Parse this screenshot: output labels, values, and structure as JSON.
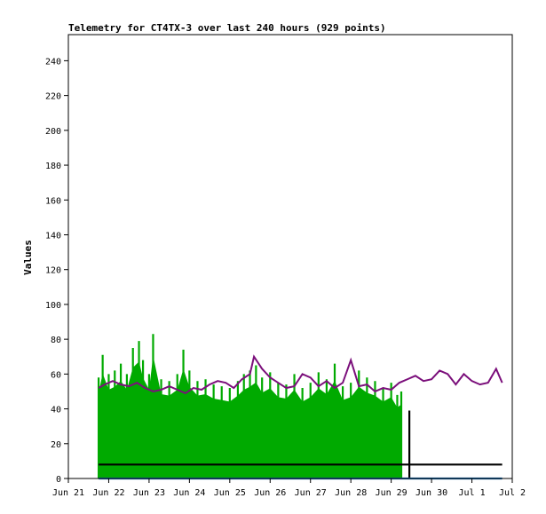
{
  "chart_data": {
    "type": "line",
    "title": "Telemetry for CT4TX-3 over last 240 hours (929 points)",
    "xlabel": "",
    "ylabel": "Values",
    "ylim": [
      0,
      255
    ],
    "yticks": [
      0,
      20,
      40,
      60,
      80,
      100,
      120,
      140,
      160,
      180,
      200,
      220,
      240
    ],
    "xlim_days": [
      21.0,
      32.0
    ],
    "xticks": [
      {
        "day": 21,
        "label": "Jun 21"
      },
      {
        "day": 22,
        "label": "Jun 22"
      },
      {
        "day": 23,
        "label": "Jun 23"
      },
      {
        "day": 24,
        "label": "Jun 24"
      },
      {
        "day": 25,
        "label": "Jun 25"
      },
      {
        "day": 26,
        "label": "Jun 26"
      },
      {
        "day": 27,
        "label": "Jun 27"
      },
      {
        "day": 28,
        "label": "Jun 28"
      },
      {
        "day": 29,
        "label": "Jun 29"
      },
      {
        "day": 30,
        "label": "Jun 30"
      },
      {
        "day": 31,
        "label": "Jul 1"
      },
      {
        "day": 32,
        "label": "Jul 2"
      }
    ],
    "grid": false,
    "legend": "none",
    "series": [
      {
        "color": "#00aa00",
        "style": "dense-bars",
        "x_days": [
          21.75,
          21.85,
          22.0,
          22.15,
          22.3,
          22.45,
          22.6,
          22.75,
          22.85,
          23.0,
          23.1,
          23.3,
          23.5,
          23.7,
          23.85,
          24.0,
          24.2,
          24.4,
          24.6,
          24.8,
          25.0,
          25.2,
          25.35,
          25.5,
          25.65,
          25.8,
          26.0,
          26.2,
          26.4,
          26.6,
          26.8,
          27.0,
          27.2,
          27.4,
          27.6,
          27.8,
          28.0,
          28.2,
          28.4,
          28.6,
          28.8,
          29.0,
          29.15,
          29.25
        ],
        "values": [
          58,
          71,
          60,
          62,
          66,
          60,
          75,
          79,
          68,
          60,
          83,
          57,
          56,
          60,
          74,
          62,
          56,
          57,
          54,
          53,
          52,
          56,
          60,
          62,
          65,
          58,
          61,
          55,
          54,
          60,
          52,
          55,
          61,
          57,
          66,
          53,
          55,
          62,
          58,
          56,
          52,
          55,
          48,
          50
        ]
      },
      {
        "color": "#7b0f7b",
        "style": "line",
        "x_days": [
          21.75,
          21.9,
          22.1,
          22.3,
          22.5,
          22.7,
          22.9,
          23.1,
          23.3,
          23.5,
          23.7,
          23.9,
          24.1,
          24.3,
          24.5,
          24.7,
          24.9,
          25.1,
          25.3,
          25.5,
          25.6,
          25.8,
          26.0,
          26.2,
          26.4,
          26.6,
          26.8,
          27.0,
          27.2,
          27.4,
          27.6,
          27.8,
          28.0,
          28.2,
          28.4,
          28.6,
          28.8,
          29.0,
          29.2,
          29.4,
          29.6,
          29.8,
          30.0,
          30.2,
          30.4,
          30.6,
          30.8,
          31.0,
          31.2,
          31.4,
          31.6,
          31.75
        ],
        "values": [
          52,
          54,
          56,
          54,
          53,
          55,
          52,
          50,
          51,
          53,
          51,
          49,
          52,
          51,
          54,
          56,
          55,
          52,
          57,
          60,
          70,
          63,
          58,
          55,
          52,
          53,
          60,
          58,
          53,
          56,
          52,
          55,
          68,
          53,
          54,
          50,
          52,
          51,
          55,
          57,
          59,
          56,
          57,
          62,
          60,
          54,
          60,
          56,
          54,
          55,
          63,
          55
        ]
      },
      {
        "color": "#000000",
        "style": "line",
        "x_days": [
          21.75,
          29.45,
          29.45,
          29.45,
          29.45,
          31.75
        ],
        "values": [
          8,
          8,
          39,
          0,
          8,
          8
        ]
      },
      {
        "color": "#1f6fb0",
        "style": "line",
        "x_days": [
          21.75,
          31.75
        ],
        "values": [
          0,
          0
        ]
      }
    ]
  }
}
